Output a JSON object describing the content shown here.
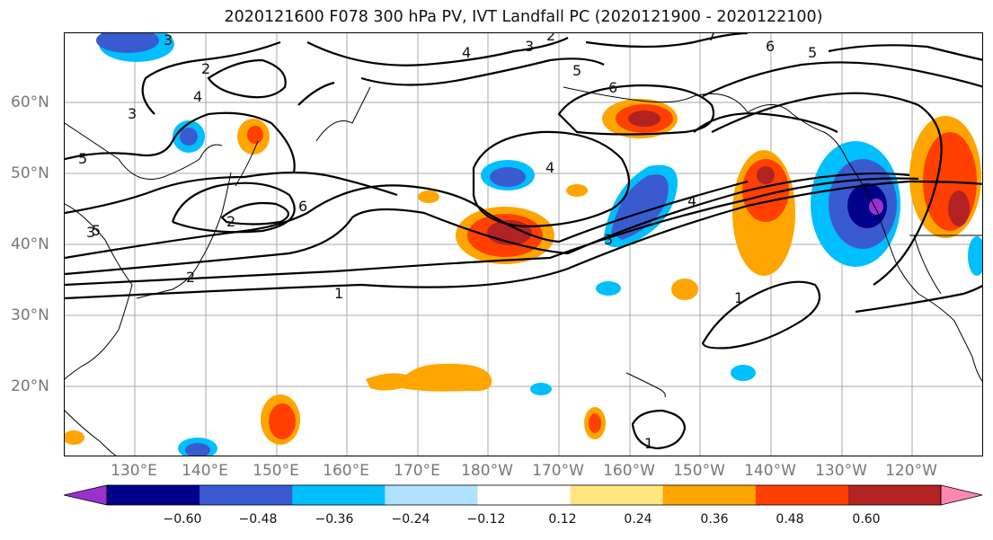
{
  "title": "2020121600 F078 300 hPa PV, IVT Landfall PC (2020121900 - 2020122100)",
  "lat_labels": [
    "60°N",
    "50°N",
    "40°N",
    "30°N",
    "20°N"
  ],
  "lon_labels": [
    "130°E",
    "140°E",
    "150°E",
    "160°E",
    "170°E",
    "180°W",
    "170°W",
    "160°W",
    "150°W",
    "140°W",
    "130°W",
    "120°W"
  ],
  "contour_labels": [
    "2",
    "3",
    "4",
    "3",
    "5",
    "7",
    "6",
    "5",
    "2",
    "3",
    "4",
    "5",
    "6",
    "2",
    "5",
    "4",
    "6",
    "3",
    "1",
    "4",
    "3",
    "2",
    "1",
    "1"
  ],
  "colorbar": {
    "ticks": [
      "−0.60",
      "−0.48",
      "−0.36",
      "−0.24",
      "−0.12",
      "0.12",
      "0.24",
      "0.36",
      "0.48",
      "0.60"
    ],
    "colors": [
      "#9932cc",
      "#00008b",
      "#3a5bd0",
      "#00bfff",
      "#b0e2ff",
      "#ffffff",
      "#ffe680",
      "#ffa500",
      "#ff4000",
      "#b22222",
      "#ff88b0"
    ]
  }
}
